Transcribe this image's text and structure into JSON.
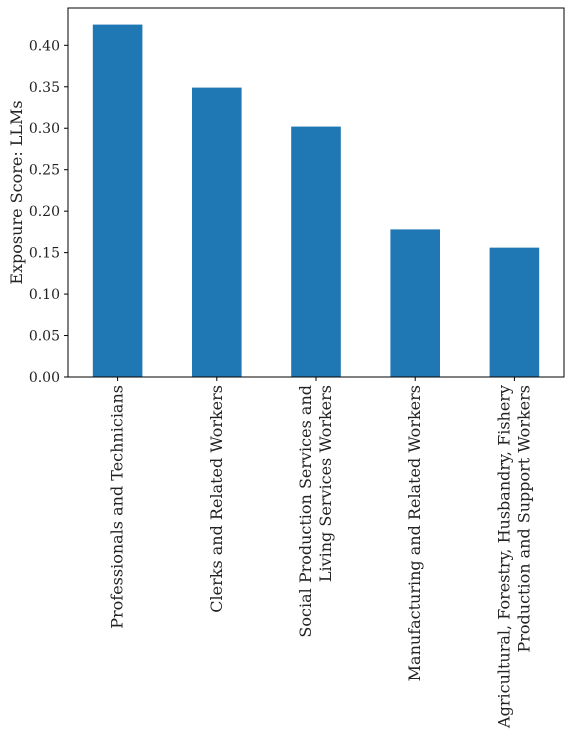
{
  "chart_data": {
    "type": "bar",
    "title": "",
    "xlabel": "",
    "ylabel": "Exposure Score: LLMs",
    "ylim": [
      0,
      0.445
    ],
    "yticks": [
      0.0,
      0.05,
      0.1,
      0.15,
      0.2,
      0.25,
      0.3,
      0.35,
      0.4
    ],
    "ytick_labels": [
      "0.00",
      "0.05",
      "0.10",
      "0.15",
      "0.20",
      "0.25",
      "0.30",
      "0.35",
      "0.40"
    ],
    "categories": [
      [
        "Professionals and Technicians"
      ],
      [
        "Clerks and Related Workers"
      ],
      [
        "Social Production Services and",
        "Living Services Workers"
      ],
      [
        "Manufacturing and Related Workers"
      ],
      [
        "Agricultural, Forestry, Husbandry, Fishery",
        "Production and Support Workers"
      ]
    ],
    "values": [
      0.425,
      0.349,
      0.302,
      0.178,
      0.156
    ],
    "bar_color": "#1f77b4",
    "grid": false,
    "legend": "none"
  }
}
